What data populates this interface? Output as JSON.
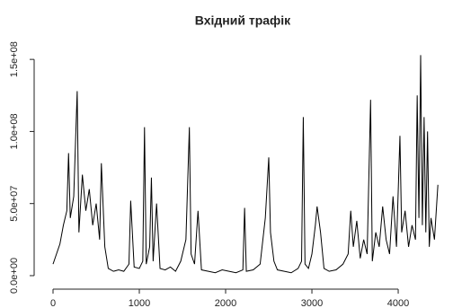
{
  "chart_data": {
    "type": "line",
    "title": "Вхідний трафік",
    "color": "#000000",
    "x": [
      0,
      40,
      80,
      120,
      160,
      180,
      200,
      240,
      280,
      300,
      340,
      380,
      420,
      460,
      500,
      540,
      560,
      600,
      640,
      700,
      760,
      820,
      880,
      900,
      940,
      1000,
      1040,
      1060,
      1080,
      1120,
      1140,
      1160,
      1200,
      1240,
      1300,
      1360,
      1420,
      1480,
      1540,
      1580,
      1600,
      1640,
      1680,
      1720,
      1800,
      1880,
      1960,
      2040,
      2120,
      2200,
      2220,
      2240,
      2320,
      2400,
      2460,
      2500,
      2520,
      2560,
      2600,
      2680,
      2760,
      2840,
      2880,
      2900,
      2920,
      2960,
      3000,
      3040,
      3060,
      3100,
      3140,
      3200,
      3280,
      3360,
      3420,
      3450,
      3480,
      3520,
      3560,
      3600,
      3640,
      3680,
      3700,
      3740,
      3780,
      3820,
      3860,
      3900,
      3940,
      3980,
      4020,
      4040,
      4080,
      4120,
      4160,
      4200,
      4220,
      4240,
      4260,
      4280,
      4300,
      4320,
      4340,
      4360,
      4380,
      4420,
      4460
    ],
    "values": [
      8000000.0,
      15000000.0,
      22000000.0,
      35000000.0,
      45000000.0,
      85000000.0,
      40000000.0,
      55000000.0,
      128000000.0,
      30000000.0,
      70000000.0,
      45000000.0,
      60000000.0,
      35000000.0,
      50000000.0,
      25000000.0,
      78000000.0,
      20000000.0,
      5000000.0,
      3000000.0,
      4000000.0,
      3000000.0,
      8000000.0,
      52000000.0,
      6000000.0,
      5000000.0,
      10000000.0,
      103000000.0,
      8000000.0,
      20000000.0,
      68000000.0,
      10000000.0,
      50000000.0,
      5000000.0,
      4000000.0,
      6000000.0,
      3000000.0,
      10000000.0,
      25000000.0,
      103000000.0,
      15000000.0,
      8000000.0,
      45000000.0,
      4000000.0,
      3000000.0,
      2000000.0,
      4000000.0,
      3000000.0,
      2000000.0,
      4000000.0,
      47000000.0,
      3000000.0,
      4000000.0,
      8000000.0,
      40000000.0,
      82000000.0,
      30000000.0,
      10000000.0,
      4000000.0,
      3000000.0,
      2000000.0,
      5000000.0,
      10000000.0,
      110000000.0,
      8000000.0,
      5000000.0,
      15000000.0,
      35000000.0,
      48000000.0,
      30000000.0,
      5000000.0,
      3000000.0,
      4000000.0,
      8000000.0,
      15000000.0,
      45000000.0,
      20000000.0,
      38000000.0,
      12000000.0,
      25000000.0,
      15000000.0,
      122000000.0,
      10000000.0,
      30000000.0,
      20000000.0,
      48000000.0,
      25000000.0,
      15000000.0,
      55000000.0,
      20000000.0,
      97000000.0,
      30000000.0,
      45000000.0,
      20000000.0,
      35000000.0,
      25000000.0,
      125000000.0,
      40000000.0,
      153000000.0,
      35000000.0,
      110000000.0,
      30000000.0,
      100000000.0,
      20000000.0,
      40000000.0,
      25000000.0,
      63000000.0
    ],
    "xlim": [
      -100,
      4560
    ],
    "xticks": [
      0,
      1000,
      2000,
      3000,
      4000
    ],
    "ylim": [
      -6000000.0,
      158000000.0
    ],
    "yticks": [
      {
        "value": 0,
        "label": "0.0e+00"
      },
      {
        "value": 50000000.0,
        "label": "5.0e+07"
      },
      {
        "value": 100000000.0,
        "label": "1.0e+08"
      },
      {
        "value": 150000000.0,
        "label": "1.5e+08"
      }
    ]
  }
}
